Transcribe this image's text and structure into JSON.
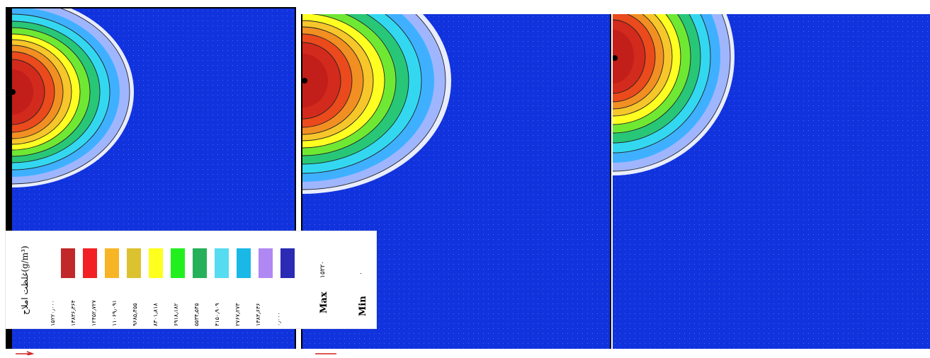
{
  "legend": {
    "title": "غلظت املاح(g/m³)",
    "colors": [
      "#c0282a",
      "#f22024",
      "#f7b525",
      "#dcc22e",
      "#ffff1e",
      "#22f01e",
      "#26b05a",
      "#55dcf0",
      "#1ab8e6",
      "#b088f4",
      "#2a2ab4"
    ],
    "values": [
      "۱۵۲۲۰٫۰۰۰",
      "۱۳۸۳۶٫۳۶۴",
      "۱۲۴۵۲٫۷۲۷",
      "۱۱۰۶۹٫۰۹۱",
      "۹۶۸۵٫۴۵۵",
      "۸۳۰۱٫۸۱۸",
      "۶۹۱۸٫۱۸۲",
      "۵۵۳۴٫۵۴۵",
      "۴۱۵۰٫۹۰۹",
      "۲۷۶۷٫۲۷۳",
      "۱۳۸۳٫۶۳۶",
      "۰٫۰۰۰"
    ],
    "max_label": "Max",
    "max_value": "۱۵۲۲۰",
    "min_label": "Min",
    "min_value": "۰"
  },
  "colors": {
    "background": "#1133dd",
    "contour_line": "#222222"
  }
}
